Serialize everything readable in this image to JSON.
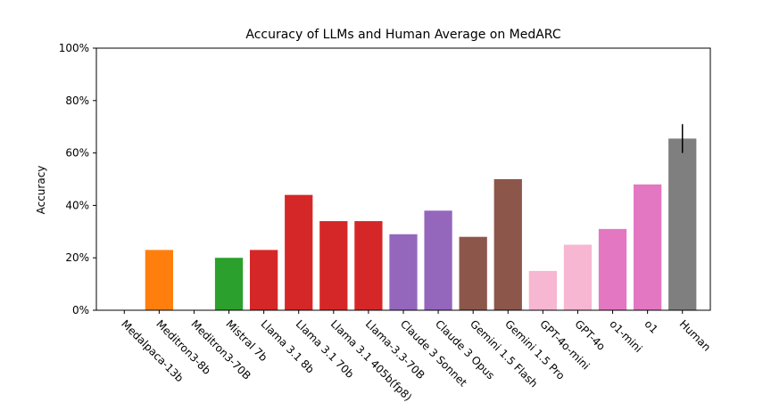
{
  "chart_data": {
    "type": "bar",
    "title": "Accuracy of LLMs and Human Average on MedARC",
    "xlabel": "",
    "ylabel": "Accuracy",
    "ylim": [
      0,
      100
    ],
    "yticks": [
      0,
      20,
      40,
      60,
      80,
      100
    ],
    "ytick_labels": [
      "0%",
      "20%",
      "40%",
      "60%",
      "80%",
      "100%"
    ],
    "categories": [
      "Medalpaca-13b",
      "Meditron3-8b",
      "Meditron3-70B",
      "Mistral 7b",
      "Llama 3.1 8b",
      "Llama 3.1 70b",
      "Llama 3.1 405b(fp8)",
      "Llama-3.3-70B",
      "Claude 3 Sonnet",
      "Claude 3 Opus",
      "Gemini 1.5 Flash",
      "Gemini 1.5 Pro",
      "GPT-4o-mini",
      "GPT-4o",
      "o1-mini",
      "o1",
      "Human"
    ],
    "values": [
      0,
      23,
      0,
      20,
      23,
      44,
      34,
      34,
      29,
      38,
      28,
      50,
      15,
      25,
      31,
      48,
      65.5
    ],
    "colors": [
      "#1f77b4",
      "#ff7f0e",
      "#ff7f0e",
      "#2ca02c",
      "#d62728",
      "#d62728",
      "#d62728",
      "#d62728",
      "#9467bd",
      "#9467bd",
      "#8c564b",
      "#8c564b",
      "#f7b6d2",
      "#f7b6d2",
      "#e377c2",
      "#e377c2",
      "#7f7f7f"
    ],
    "error": {
      "category": "Human",
      "low": 60,
      "high": 71
    },
    "grid": false,
    "legend": "none"
  }
}
